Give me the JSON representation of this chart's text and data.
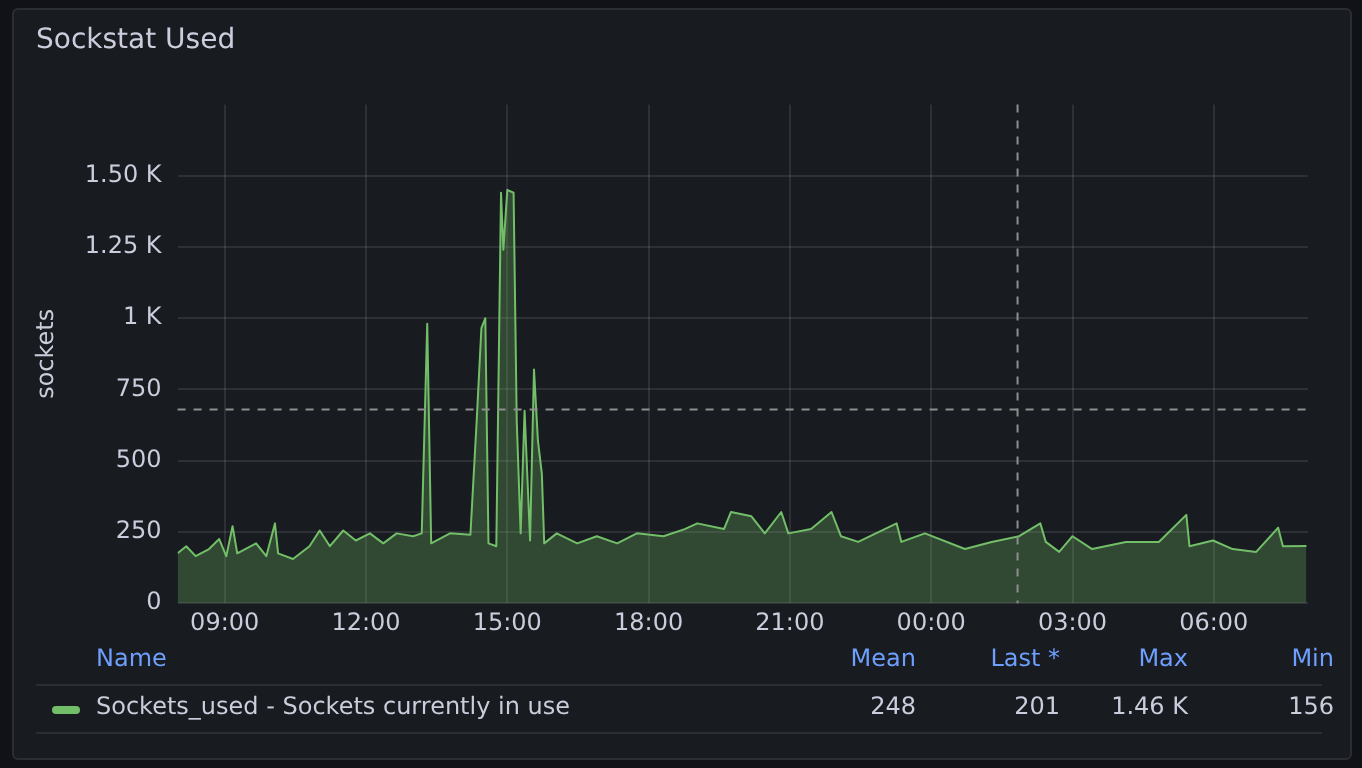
{
  "chart_data": {
    "type": "area",
    "title": "Sockstat Used",
    "ylabel": "sockets",
    "legend_title": "Name",
    "annotations": [
      "Mean",
      "Last *",
      "Max",
      "Min",
      "248",
      "201",
      "1.46 K",
      "156"
    ],
    "xlim": [
      "--01-01T08:00",
      "--01-02T08:00"
    ],
    "xticks": [
      {
        "value": "--01-01T09:00",
        "label": "09:00"
      },
      {
        "value": "--01-01T12:00",
        "label": "12:00"
      },
      {
        "value": "--01-01T15:00",
        "label": "15:00"
      },
      {
        "value": "--01-01T18:00",
        "label": "18:00"
      },
      {
        "value": "--01-01T21:00",
        "label": "21:00"
      },
      {
        "value": "--01-02T00:00",
        "label": "00:00"
      },
      {
        "value": "--01-02T03:00",
        "label": "03:00"
      },
      {
        "value": "--01-02T06:00",
        "label": "06:00"
      }
    ],
    "ylim": [
      0,
      1750
    ],
    "yticks": [
      0,
      250,
      500,
      750,
      {
        "value": 1000,
        "label": "1 K"
      },
      {
        "value": 1250,
        "label": "1.25 K"
      },
      {
        "value": 1500,
        "label": "1.50 K"
      }
    ],
    "grid": true,
    "legend": "bottom",
    "ref_lines": [
      {
        "axis": "x",
        "value": "--01-02T01:50",
        "line_style": "dashed",
        "color": "#8e8e8e"
      },
      {
        "axis": "y",
        "value": 680,
        "line_style": "dashed",
        "color": "#8e8e8e"
      }
    ],
    "series": [
      {
        "name": "Sockets_used - Sockets currently in use",
        "color": "#73bf69",
        "x": [
          "--01-01T08:00",
          "--01-01T08:11",
          "--01-01T08:23",
          "--01-01T08:40",
          "--01-01T08:53",
          "--01-01T09:02",
          "--01-01T09:10",
          "--01-01T09:16",
          "--01-01T09:40",
          "--01-01T09:53",
          "--01-01T10:04",
          "--01-01T10:08",
          "--01-01T10:27",
          "--01-01T10:48",
          "--01-01T11:01",
          "--01-01T11:14",
          "--01-01T11:31",
          "--01-01T11:47",
          "--01-01T12:05",
          "--01-01T12:22",
          "--01-01T12:39",
          "--01-01T13:00",
          "--01-01T13:11",
          "--01-01T13:18",
          "--01-01T13:23",
          "--01-01T13:47",
          "--01-01T14:13",
          "--01-01T14:21",
          "--01-01T14:27",
          "--01-01T14:32",
          "--01-01T14:36",
          "--01-01T14:46",
          "--01-01T14:52",
          "--01-01T14:55",
          "--01-01T15:00",
          "--01-01T15:08",
          "--01-01T15:12",
          "--01-01T15:17",
          "--01-01T15:22",
          "--01-01T15:29",
          "--01-01T15:34",
          "--01-01T15:39",
          "--01-01T15:44",
          "--01-01T15:47",
          "--01-01T16:03",
          "--01-01T16:29",
          "--01-01T16:54",
          "--01-01T17:20",
          "--01-01T17:45",
          "--01-01T18:19",
          "--01-01T18:46",
          "--01-01T19:02",
          "--01-01T19:36",
          "--01-01T19:45",
          "--01-01T20:11",
          "--01-01T20:28",
          "--01-01T20:49",
          "--01-01T20:58",
          "--01-01T21:27",
          "--01-01T21:53",
          "--01-01T22:05",
          "--01-01T22:27",
          "--01-01T23:16",
          "--01-01T23:22",
          "--01-01T23:52",
          "--01-02T00:43",
          "--01-02T01:17",
          "--01-02T01:52",
          "--01-02T02:19",
          "--01-02T02:26",
          "--01-02T02:43",
          "--01-02T03:00",
          "--01-02T03:25",
          "--01-02T04:08",
          "--01-02T04:50",
          "--01-02T05:25",
          "--01-02T05:29",
          "--01-02T05:59",
          "--01-02T06:24",
          "--01-02T06:54",
          "--01-02T07:22",
          "--01-02T07:28",
          "--01-02T07:58"
        ],
        "values": [
          175,
          200,
          165,
          190,
          225,
          165,
          270,
          175,
          210,
          165,
          280,
          175,
          155,
          200,
          255,
          200,
          255,
          220,
          245,
          210,
          245,
          235,
          245,
          980,
          210,
          245,
          240,
          640,
          965,
          1000,
          210,
          200,
          1440,
          1240,
          1450,
          1440,
          640,
          245,
          675,
          220,
          820,
          570,
          455,
          210,
          245,
          210,
          235,
          210,
          245,
          235,
          260,
          280,
          260,
          320,
          305,
          245,
          320,
          245,
          260,
          320,
          235,
          215,
          280,
          215,
          245,
          190,
          215,
          235,
          280,
          215,
          180,
          235,
          190,
          215,
          215,
          310,
          200,
          220,
          190,
          180,
          265,
          200,
          201
        ]
      }
    ]
  }
}
